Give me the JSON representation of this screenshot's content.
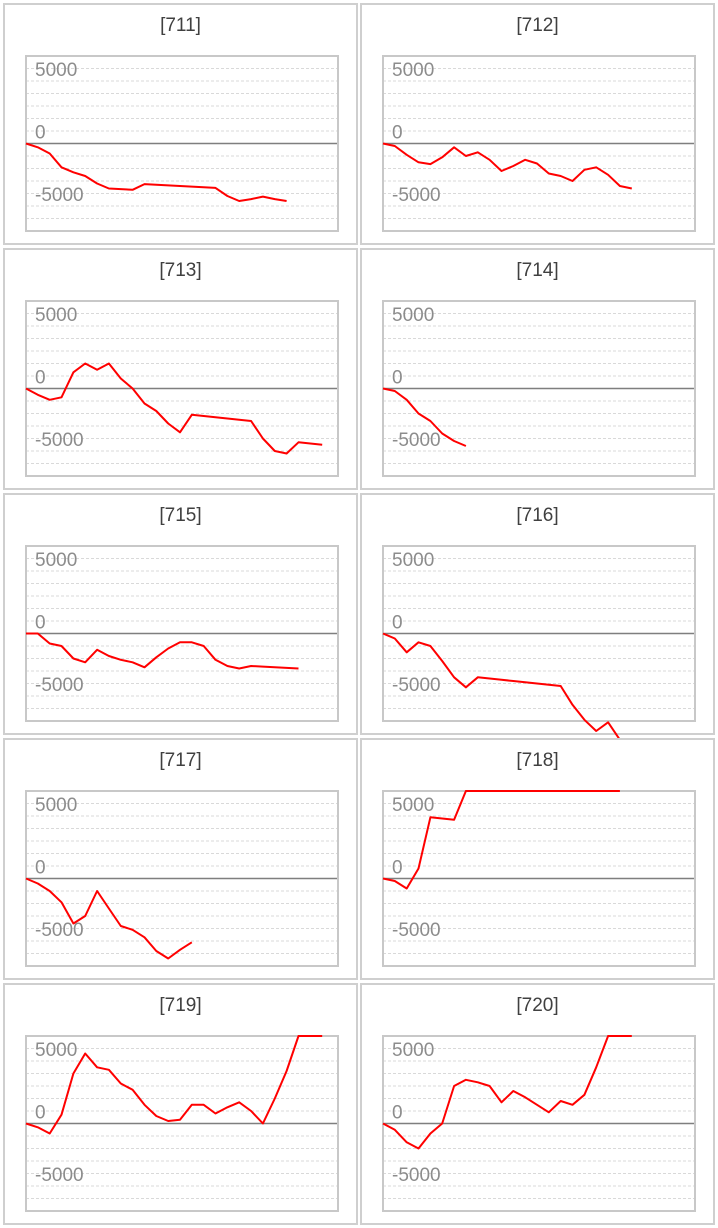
{
  "chart_data": [
    {
      "type": "line",
      "title": "[711]",
      "yticks": [
        5000,
        0,
        -5000
      ],
      "ylim": [
        -7000,
        7000
      ],
      "color": "#ff0000",
      "series": [
        {
          "values": [
            0,
            -300,
            -800,
            -1900,
            -2300,
            -2600,
            -3200,
            -3600,
            -3650,
            -3700,
            -3250,
            -3300,
            -3350,
            -3400,
            -3450,
            -3500,
            -3550,
            -4200,
            -4600,
            -4450,
            -4250,
            -4450,
            -4600
          ]
        }
      ]
    },
    {
      "type": "line",
      "title": "[712]",
      "yticks": [
        5000,
        0,
        -5000
      ],
      "ylim": [
        -7000,
        7000
      ],
      "color": "#ff0000",
      "series": [
        {
          "values": [
            0,
            -200,
            -900,
            -1500,
            -1650,
            -1100,
            -300,
            -1000,
            -700,
            -1300,
            -2200,
            -1800,
            -1300,
            -1600,
            -2400,
            -2600,
            -3000,
            -2100,
            -1900,
            -2500,
            -3400,
            -3600
          ]
        }
      ]
    },
    {
      "type": "line",
      "title": "[713]",
      "yticks": [
        5000,
        0,
        -5000
      ],
      "ylim": [
        -7000,
        7000
      ],
      "color": "#ff0000",
      "series": [
        {
          "values": [
            0,
            -500,
            -900,
            -700,
            1300,
            2000,
            1500,
            2000,
            800,
            0,
            -1200,
            -1800,
            -2800,
            -3500,
            -2100,
            -2200,
            -2300,
            -2400,
            -2500,
            -2600,
            -4000,
            -5000,
            -5200,
            -4300,
            -4400,
            -4500
          ]
        }
      ]
    },
    {
      "type": "line",
      "title": "[714]",
      "yticks": [
        5000,
        0,
        -5000
      ],
      "ylim": [
        -7000,
        7000
      ],
      "color": "#ff0000",
      "series": [
        {
          "values": [
            0,
            -200,
            -900,
            -2000,
            -2600,
            -3600,
            -4200,
            -4600
          ]
        }
      ]
    },
    {
      "type": "line",
      "title": "[715]",
      "yticks": [
        5000,
        0,
        -5000
      ],
      "ylim": [
        -7000,
        7000
      ],
      "color": "#ff0000",
      "series": [
        {
          "values": [
            0,
            0,
            -800,
            -1000,
            -2000,
            -2300,
            -1300,
            -1800,
            -2100,
            -2300,
            -2700,
            -1900,
            -1200,
            -700,
            -700,
            -1000,
            -2100,
            -2600,
            -2800,
            -2600,
            -2650,
            -2700,
            -2750,
            -2800
          ]
        }
      ]
    },
    {
      "type": "line",
      "title": "[716]",
      "yticks": [
        5000,
        0,
        -5000
      ],
      "ylim": [
        -7000,
        7000
      ],
      "color": "#ff0000",
      "series": [
        {
          "values": [
            0,
            -400,
            -1500,
            -700,
            -1000,
            -2200,
            -3500,
            -4300,
            -3500,
            -3600,
            -3700,
            -3800,
            -3900,
            -4000,
            -4100,
            -4200,
            -5700,
            -6900,
            -7800,
            -7100,
            -8600
          ]
        }
      ]
    },
    {
      "type": "line",
      "title": "[717]",
      "yticks": [
        5000,
        0,
        -5000
      ],
      "ylim": [
        -7000,
        7000
      ],
      "color": "#ff0000",
      "series": [
        {
          "values": [
            0,
            -400,
            -1000,
            -1900,
            -3600,
            -3000,
            -1000,
            -2400,
            -3800,
            -4100,
            -4700,
            -5800,
            -6400,
            -5700,
            -5100
          ]
        }
      ]
    },
    {
      "type": "line",
      "title": "[718]",
      "yticks": [
        5000,
        0,
        -5000
      ],
      "ylim": [
        -7000,
        7000
      ],
      "color": "#ff0000",
      "series": [
        {
          "values": [
            0,
            -200,
            -800,
            800,
            4900,
            4800,
            4700,
            7000,
            7000,
            7000,
            7000,
            7000,
            7000,
            7000,
            7000,
            7000,
            7000,
            7000,
            7000,
            7000,
            7000
          ]
        }
      ]
    },
    {
      "type": "line",
      "title": "[719]",
      "yticks": [
        5000,
        0,
        -5000
      ],
      "ylim": [
        -7000,
        7000
      ],
      "color": "#ff0000",
      "series": [
        {
          "values": [
            0,
            -300,
            -800,
            700,
            4000,
            5600,
            4500,
            4300,
            3200,
            2700,
            1500,
            600,
            200,
            300,
            1500,
            1500,
            800,
            1300,
            1700,
            1000,
            0,
            2000,
            4200,
            7000,
            7000,
            7000
          ]
        }
      ]
    },
    {
      "type": "line",
      "title": "[720]",
      "yticks": [
        5000,
        0,
        -5000
      ],
      "ylim": [
        -7000,
        7000
      ],
      "color": "#ff0000",
      "series": [
        {
          "values": [
            0,
            -500,
            -1500,
            -2000,
            -800,
            0,
            3000,
            3500,
            3300,
            3000,
            1700,
            2600,
            2100,
            1500,
            900,
            1800,
            1500,
            2300,
            4500,
            7000,
            7000,
            7000
          ]
        }
      ]
    }
  ]
}
